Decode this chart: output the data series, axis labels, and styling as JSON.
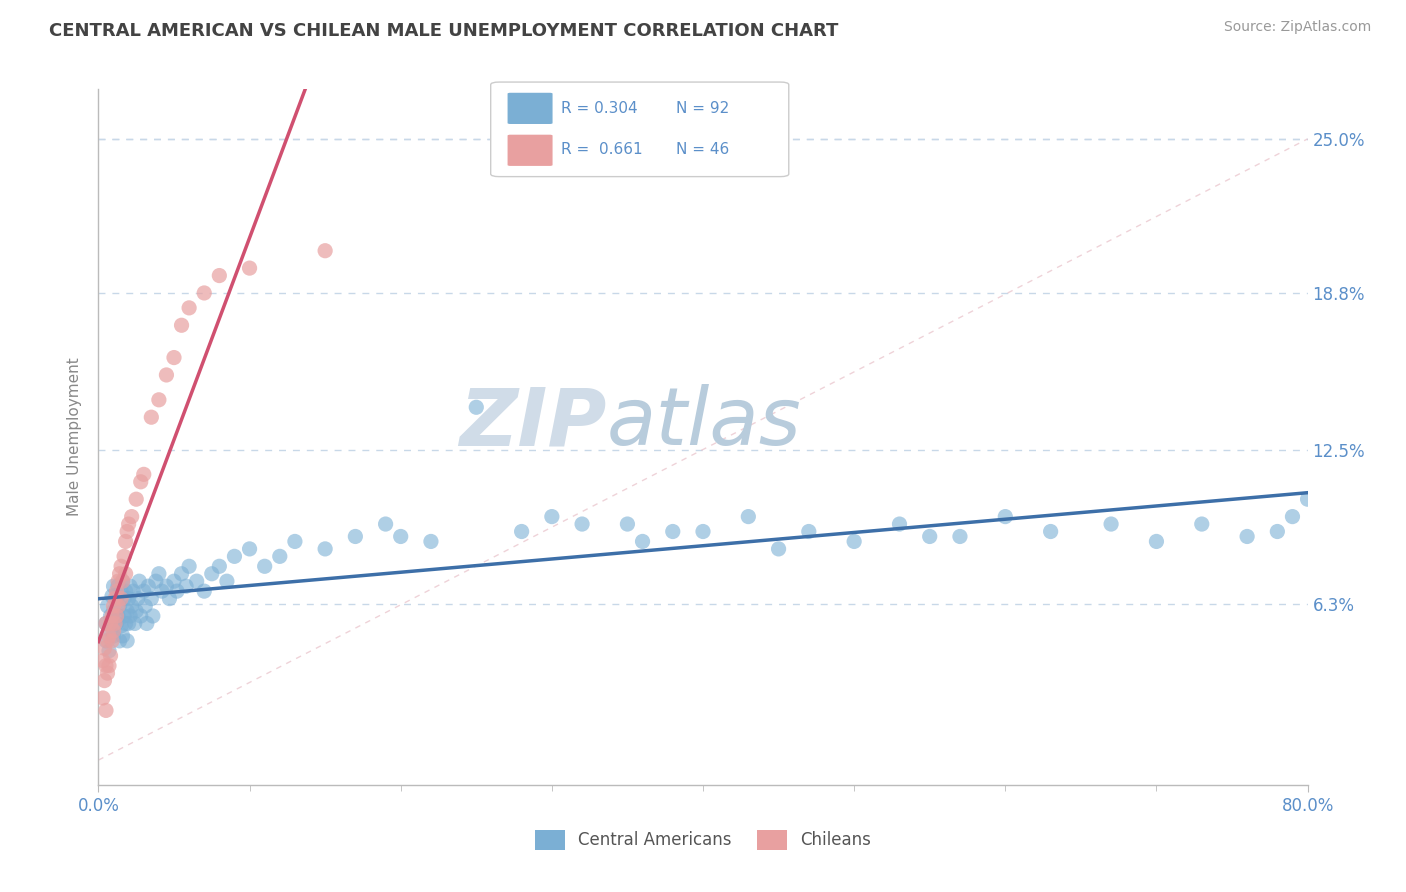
{
  "title": "CENTRAL AMERICAN VS CHILEAN MALE UNEMPLOYMENT CORRELATION CHART",
  "source": "Source: ZipAtlas.com",
  "ylabel": "Male Unemployment",
  "xlim": [
    0.0,
    0.8
  ],
  "ylim": [
    -0.01,
    0.27
  ],
  "ylim_data": [
    0.0,
    0.25
  ],
  "xtick_labels": [
    "0.0%",
    "80.0%"
  ],
  "xtick_vals": [
    0.0,
    0.8
  ],
  "ytick_labels": [
    "6.3%",
    "12.5%",
    "18.8%",
    "25.0%"
  ],
  "ytick_vals": [
    0.063,
    0.125,
    0.188,
    0.25
  ],
  "blue_color": "#7bafd4",
  "pink_color": "#e8a0a0",
  "blue_line_color": "#3d6fa8",
  "pink_line_color": "#d05070",
  "diag_line_color": "#e0b0b8",
  "title_color": "#434343",
  "axis_color": "#5b8fc9",
  "grid_color": "#c8d8e8",
  "watermark_color_zip": "#c8d8e8",
  "watermark_color_atlas": "#a8c0d8",
  "legend_text_color": "#5b8fc9",
  "blue_R": 0.304,
  "pink_R": 0.661,
  "blue_N": 92,
  "pink_N": 46,
  "blue_scatter_x": [
    0.005,
    0.005,
    0.006,
    0.007,
    0.008,
    0.008,
    0.009,
    0.01,
    0.01,
    0.01,
    0.012,
    0.012,
    0.013,
    0.013,
    0.014,
    0.014,
    0.015,
    0.015,
    0.016,
    0.016,
    0.017,
    0.017,
    0.018,
    0.018,
    0.019,
    0.019,
    0.02,
    0.02,
    0.021,
    0.021,
    0.022,
    0.023,
    0.024,
    0.025,
    0.026,
    0.027,
    0.028,
    0.03,
    0.031,
    0.032,
    0.033,
    0.035,
    0.036,
    0.038,
    0.04,
    0.042,
    0.045,
    0.047,
    0.05,
    0.052,
    0.055,
    0.058,
    0.06,
    0.065,
    0.07,
    0.075,
    0.08,
    0.085,
    0.09,
    0.1,
    0.11,
    0.12,
    0.13,
    0.15,
    0.17,
    0.19,
    0.22,
    0.25,
    0.28,
    0.32,
    0.36,
    0.4,
    0.43,
    0.47,
    0.5,
    0.53,
    0.57,
    0.6,
    0.63,
    0.67,
    0.7,
    0.73,
    0.76,
    0.78,
    0.79,
    0.8,
    0.55,
    0.45,
    0.38,
    0.35,
    0.3,
    0.2
  ],
  "blue_scatter_y": [
    0.055,
    0.048,
    0.062,
    0.044,
    0.058,
    0.052,
    0.066,
    0.07,
    0.06,
    0.05,
    0.065,
    0.055,
    0.07,
    0.058,
    0.062,
    0.048,
    0.068,
    0.054,
    0.072,
    0.05,
    0.058,
    0.065,
    0.055,
    0.068,
    0.06,
    0.048,
    0.065,
    0.055,
    0.07,
    0.058,
    0.062,
    0.068,
    0.055,
    0.06,
    0.065,
    0.072,
    0.058,
    0.068,
    0.062,
    0.055,
    0.07,
    0.065,
    0.058,
    0.072,
    0.075,
    0.068,
    0.07,
    0.065,
    0.072,
    0.068,
    0.075,
    0.07,
    0.078,
    0.072,
    0.068,
    0.075,
    0.078,
    0.072,
    0.082,
    0.085,
    0.078,
    0.082,
    0.088,
    0.085,
    0.09,
    0.095,
    0.088,
    0.142,
    0.092,
    0.095,
    0.088,
    0.092,
    0.098,
    0.092,
    0.088,
    0.095,
    0.09,
    0.098,
    0.092,
    0.095,
    0.088,
    0.095,
    0.09,
    0.092,
    0.098,
    0.105,
    0.09,
    0.085,
    0.092,
    0.095,
    0.098,
    0.09
  ],
  "pink_scatter_x": [
    0.003,
    0.003,
    0.004,
    0.004,
    0.005,
    0.005,
    0.005,
    0.006,
    0.006,
    0.007,
    0.007,
    0.008,
    0.008,
    0.009,
    0.009,
    0.01,
    0.01,
    0.011,
    0.011,
    0.012,
    0.012,
    0.013,
    0.013,
    0.014,
    0.015,
    0.015,
    0.016,
    0.017,
    0.018,
    0.018,
    0.019,
    0.02,
    0.022,
    0.025,
    0.028,
    0.03,
    0.035,
    0.04,
    0.045,
    0.05,
    0.055,
    0.06,
    0.07,
    0.08,
    0.1,
    0.15
  ],
  "pink_scatter_y": [
    0.04,
    0.025,
    0.045,
    0.032,
    0.055,
    0.038,
    0.02,
    0.048,
    0.035,
    0.05,
    0.038,
    0.055,
    0.042,
    0.058,
    0.048,
    0.062,
    0.052,
    0.065,
    0.055,
    0.068,
    0.058,
    0.072,
    0.062,
    0.075,
    0.065,
    0.078,
    0.072,
    0.082,
    0.088,
    0.075,
    0.092,
    0.095,
    0.098,
    0.105,
    0.112,
    0.115,
    0.138,
    0.145,
    0.155,
    0.162,
    0.175,
    0.182,
    0.188,
    0.195,
    0.198,
    0.205
  ],
  "background_color": "#ffffff"
}
